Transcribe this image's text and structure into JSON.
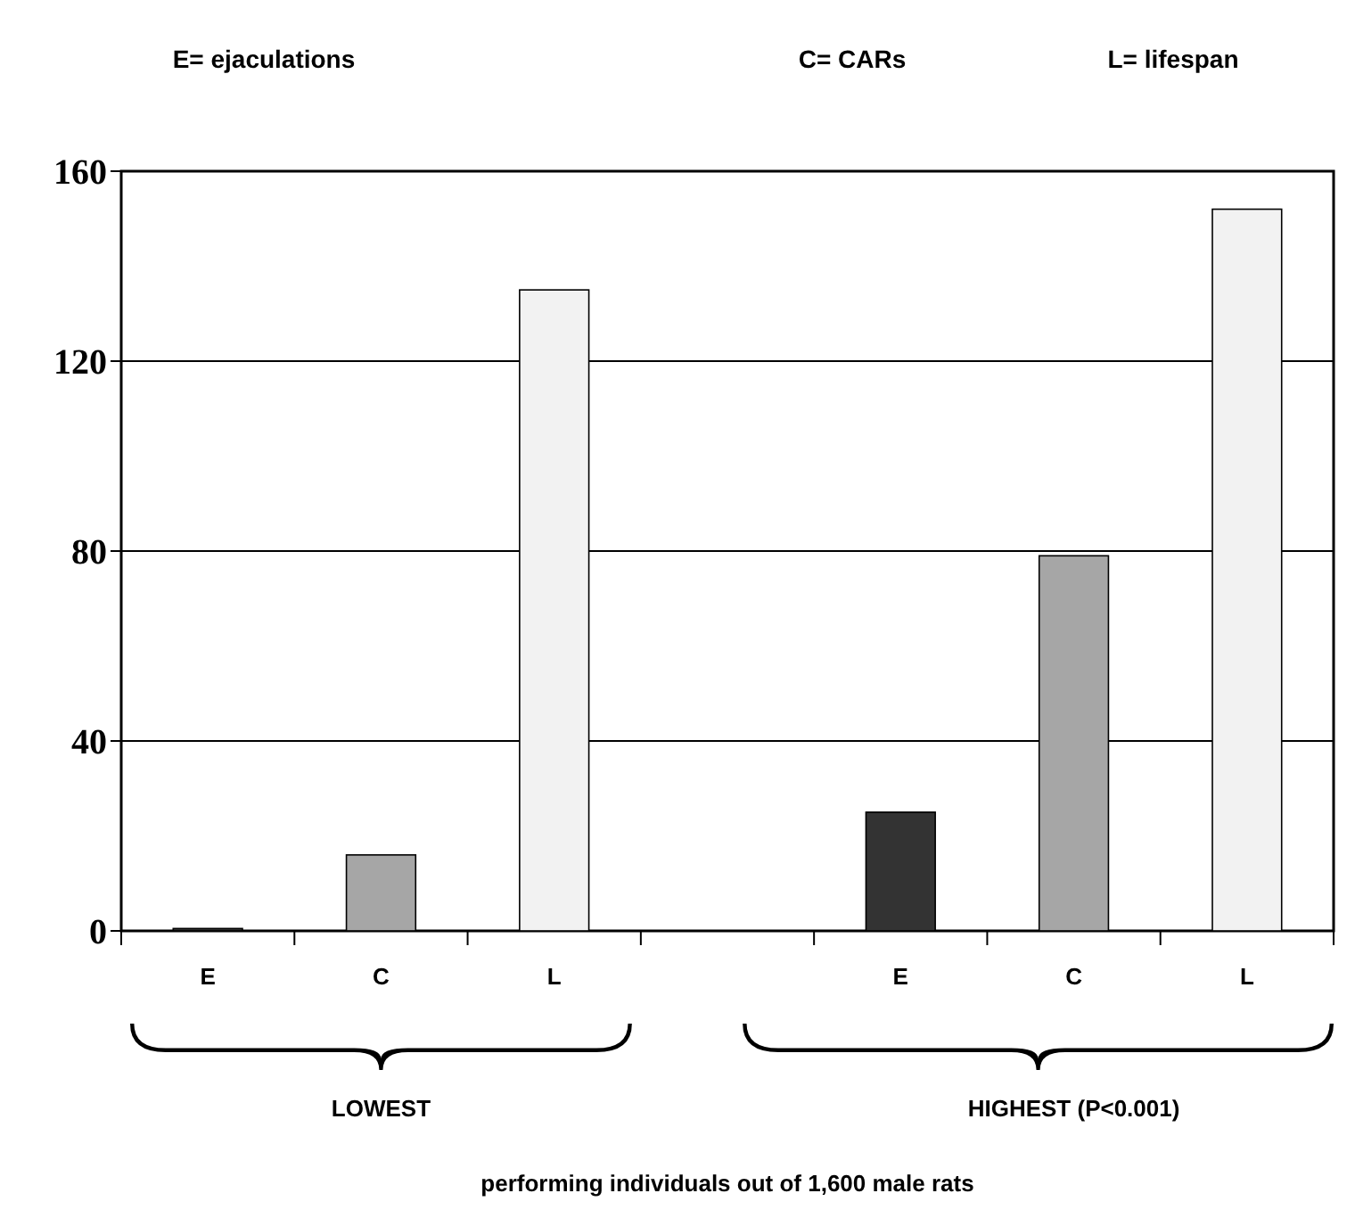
{
  "chart_data": {
    "type": "bar",
    "categories": [
      "E",
      "C",
      "L",
      "E",
      "C",
      "L"
    ],
    "values": [
      0.5,
      16,
      135,
      25,
      79,
      152
    ],
    "colors": [
      "#333333",
      "#a6a6a6",
      "#f2f2f2",
      "#333333",
      "#a6a6a6",
      "#f2f2f2"
    ],
    "ylim": [
      0,
      160
    ],
    "yticks": [
      0,
      40,
      80,
      120,
      160
    ],
    "grid": "y",
    "annotations": [
      "E= ejaculations",
      "C= CARs",
      "L= lifespan",
      "LOWEST",
      "HIGHEST  (P<0.001)",
      "performing individuals  out of 1,600 male rats"
    ]
  }
}
